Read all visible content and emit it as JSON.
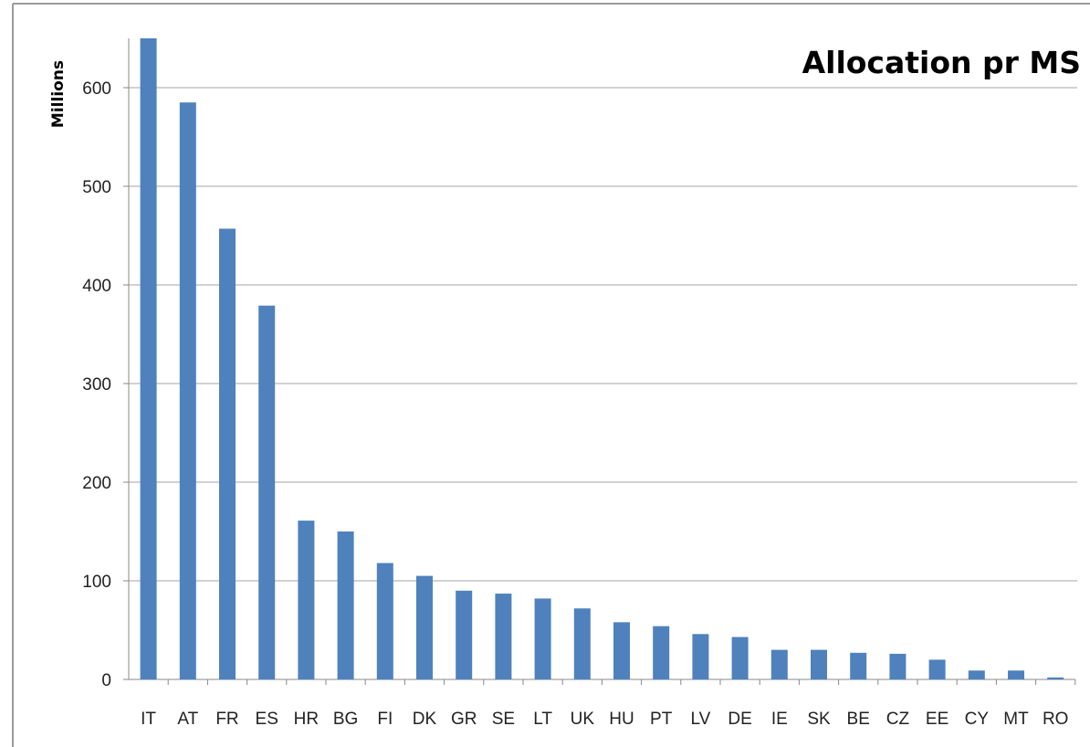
{
  "chart_data": {
    "type": "bar",
    "title": "Allocation pr MS",
    "xlabel": "",
    "ylabel": "Millions",
    "categories": [
      "IT",
      "AT",
      "FR",
      "ES",
      "HR",
      "BG",
      "FI",
      "DK",
      "GR",
      "SE",
      "LT",
      "UK",
      "HU",
      "PT",
      "LV",
      "DE",
      "IE",
      "SK",
      "BE",
      "CZ",
      "EE",
      "CY",
      "MT",
      "RO"
    ],
    "values": [
      651,
      585,
      457,
      379,
      161,
      150,
      118,
      105,
      90,
      87,
      82,
      72,
      58,
      54,
      46,
      43,
      30,
      30,
      27,
      26,
      20,
      9,
      9,
      2
    ],
    "ylim": [
      0,
      650
    ],
    "yticks": [
      0,
      100,
      200,
      300,
      400,
      500,
      600
    ],
    "grid": true,
    "legend": "none",
    "bar_color": "#4F81BD",
    "grid_color": "#A6A6A6",
    "axis_color": "#888888"
  }
}
